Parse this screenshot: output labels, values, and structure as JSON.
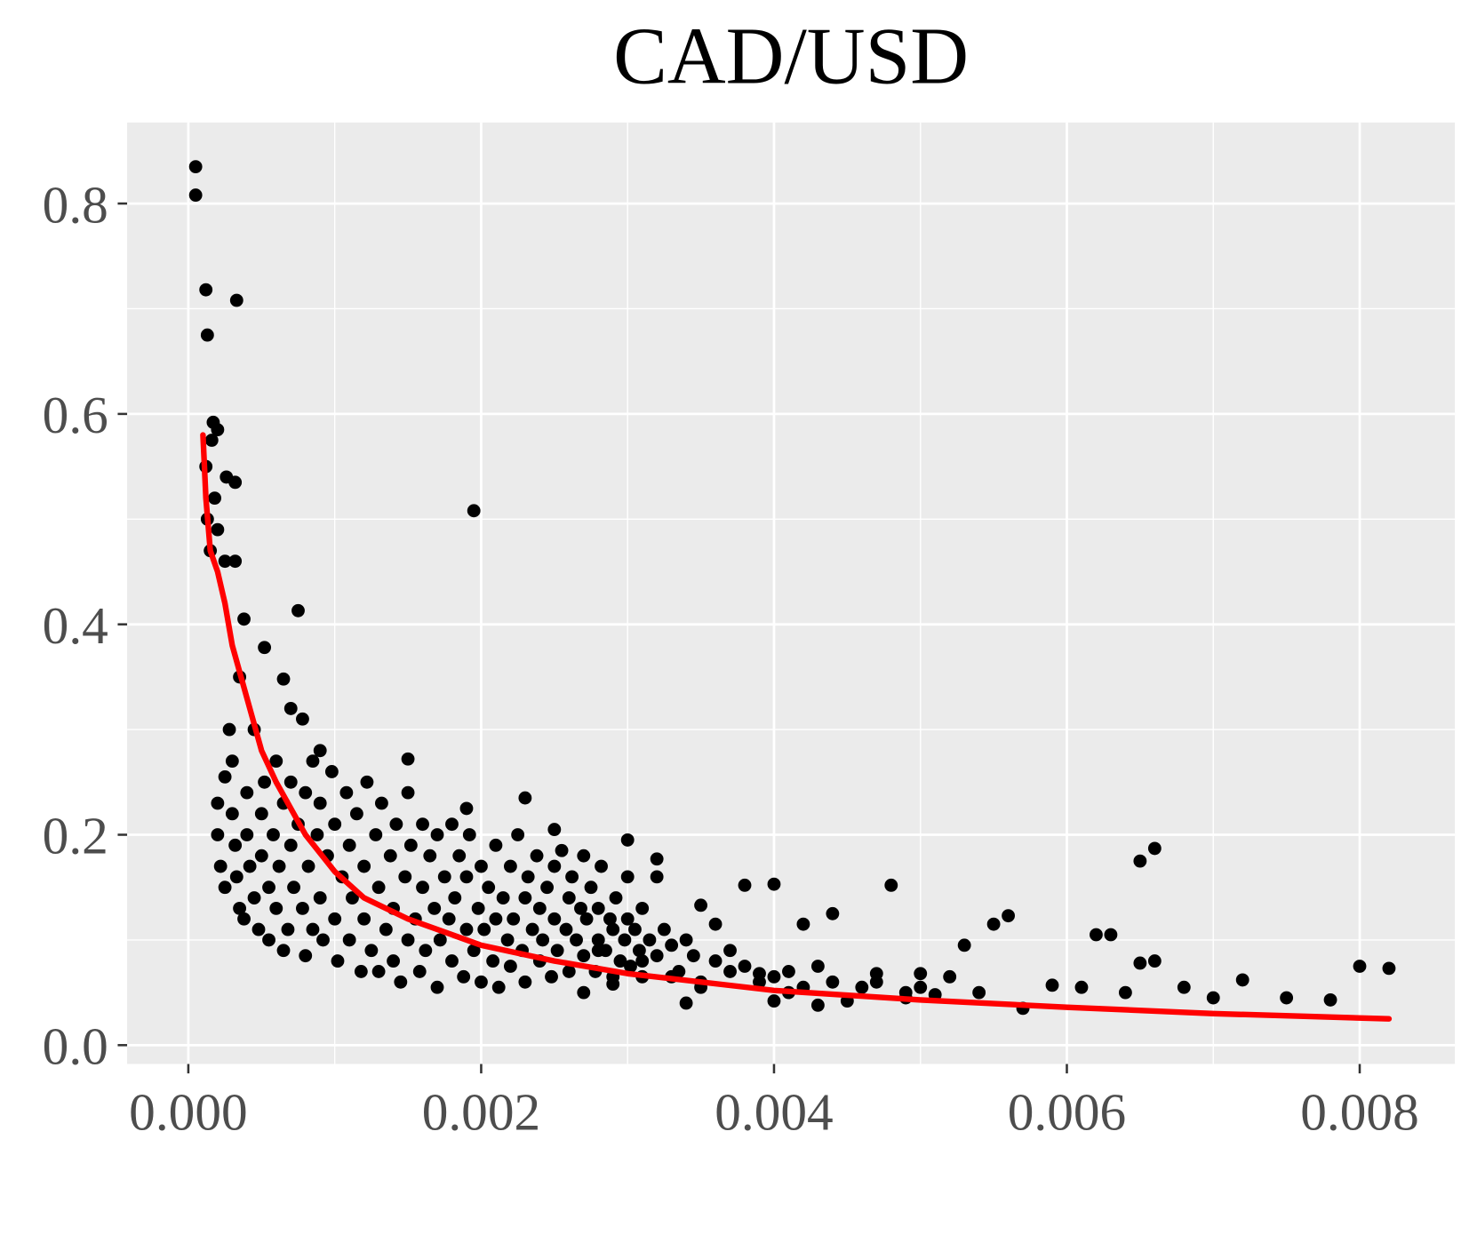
{
  "chart_data": {
    "type": "scatter",
    "title": "CAD/USD",
    "xlim": [
      -0.000418,
      0.00865
    ],
    "ylim": [
      -0.0179,
      0.877
    ],
    "xticks": [
      {
        "value": 0,
        "label": "0.000"
      },
      {
        "value": 0.002,
        "label": "0.002"
      },
      {
        "value": 0.004,
        "label": "0.004"
      },
      {
        "value": 0.006,
        "label": "0.006"
      },
      {
        "value": 0.008,
        "label": "0.008"
      }
    ],
    "yticks": [
      {
        "value": 0,
        "label": "0.0"
      },
      0.2,
      0.4,
      0.6,
      0.8
    ],
    "xminor": [
      0.001,
      0.003,
      0.005,
      0.007
    ],
    "yminor": [
      0.1,
      0.3,
      0.5,
      0.7
    ],
    "grid": true,
    "series": [
      {
        "type": "scatter",
        "color": "#000000",
        "x": [
          5e-05,
          5e-05,
          0.00012,
          0.00033,
          0.00013,
          0.00017,
          0.0002,
          0.00016,
          0.00012,
          0.00026,
          0.00032,
          0.00018,
          0.00195,
          0.00013,
          0.0002,
          0.00015,
          0.00025,
          0.00032,
          0.00075,
          0.00038,
          0.00052,
          0.00065,
          0.0007,
          0.00078,
          0.0009,
          0.0015,
          0.0023,
          0.0019,
          0.0025,
          0.003,
          0.0032,
          0.0035,
          0.0036,
          0.0038,
          0.004,
          0.0042,
          0.0044,
          0.0048,
          0.0055,
          0.0056,
          0.0053,
          0.0065,
          0.0066,
          0.0063,
          0.0062,
          0.0065,
          0.0066,
          0.008,
          0.0082,
          0.0075,
          0.0078,
          0.0072,
          0.007,
          0.0068,
          0.0059,
          0.0061,
          0.0064,
          0.0057,
          0.0054,
          0.0052,
          0.005,
          0.0049,
          0.0047,
          0.0045,
          0.0043,
          0.0041,
          0.004,
          0.0039,
          0.0037,
          0.0035,
          0.0034,
          0.0033,
          0.0031,
          0.0029,
          0.0028,
          0.0027,
          0.0002,
          0.0002,
          0.00022,
          0.00025,
          0.00025,
          0.00028,
          0.0003,
          0.0003,
          0.00032,
          0.00033,
          0.00035,
          0.00035,
          0.00038,
          0.0004,
          0.0004,
          0.00042,
          0.00045,
          0.00045,
          0.00048,
          0.0005,
          0.0005,
          0.00052,
          0.00055,
          0.00055,
          0.00058,
          0.0006,
          0.0006,
          0.00062,
          0.00065,
          0.00065,
          0.00068,
          0.0007,
          0.0007,
          0.00072,
          0.00075,
          0.00078,
          0.0008,
          0.0008,
          0.00082,
          0.00085,
          0.00085,
          0.00088,
          0.0009,
          0.0009,
          0.00092,
          0.00095,
          0.00098,
          0.001,
          0.001,
          0.00102,
          0.00105,
          0.00108,
          0.0011,
          0.0011,
          0.00112,
          0.00115,
          0.00118,
          0.0012,
          0.0012,
          0.00122,
          0.00125,
          0.00128,
          0.0013,
          0.0013,
          0.00132,
          0.00135,
          0.00138,
          0.0014,
          0.0014,
          0.00142,
          0.00145,
          0.00148,
          0.0015,
          0.0015,
          0.00152,
          0.00155,
          0.00158,
          0.0016,
          0.0016,
          0.00162,
          0.00165,
          0.00168,
          0.0017,
          0.0017,
          0.00172,
          0.00175,
          0.00178,
          0.0018,
          0.0018,
          0.00182,
          0.00185,
          0.00188,
          0.0019,
          0.0019,
          0.00192,
          0.00195,
          0.00198,
          0.002,
          0.002,
          0.00202,
          0.00205,
          0.00208,
          0.0021,
          0.0021,
          0.00212,
          0.00215,
          0.00218,
          0.0022,
          0.0022,
          0.00222,
          0.00225,
          0.00228,
          0.0023,
          0.0023,
          0.00232,
          0.00235,
          0.00238,
          0.0024,
          0.0024,
          0.00242,
          0.00245,
          0.00248,
          0.0025,
          0.0025,
          0.00252,
          0.00255,
          0.00258,
          0.0026,
          0.0026,
          0.00262,
          0.00265,
          0.00268,
          0.0027,
          0.0027,
          0.00272,
          0.00275,
          0.00278,
          0.0028,
          0.0028,
          0.00282,
          0.00285,
          0.00288,
          0.0029,
          0.0029,
          0.00292,
          0.00295,
          0.00298,
          0.003,
          0.003,
          0.00302,
          0.00305,
          0.00308,
          0.0031,
          0.0031,
          0.00315,
          0.0032,
          0.0032,
          0.00325,
          0.0033,
          0.00335,
          0.0034,
          0.00345,
          0.0035,
          0.0036,
          0.0037,
          0.0038,
          0.0039,
          0.004,
          0.0041,
          0.0042,
          0.0043,
          0.0044,
          0.0046,
          0.0047,
          0.0049,
          0.005,
          0.0051
        ],
        "values": [
          0.835,
          0.808,
          0.718,
          0.708,
          0.675,
          0.592,
          0.585,
          0.575,
          0.55,
          0.54,
          0.535,
          0.52,
          0.508,
          0.5,
          0.49,
          0.47,
          0.46,
          0.46,
          0.413,
          0.405,
          0.378,
          0.348,
          0.32,
          0.31,
          0.28,
          0.272,
          0.235,
          0.225,
          0.205,
          0.195,
          0.177,
          0.133,
          0.115,
          0.152,
          0.153,
          0.115,
          0.125,
          0.152,
          0.115,
          0.123,
          0.095,
          0.175,
          0.187,
          0.105,
          0.105,
          0.078,
          0.08,
          0.075,
          0.073,
          0.045,
          0.043,
          0.062,
          0.045,
          0.055,
          0.057,
          0.055,
          0.05,
          0.035,
          0.05,
          0.065,
          0.068,
          0.05,
          0.068,
          0.042,
          0.038,
          0.05,
          0.042,
          0.068,
          0.07,
          0.055,
          0.04,
          0.065,
          0.08,
          0.058,
          0.09,
          0.05,
          0.23,
          0.2,
          0.17,
          0.15,
          0.255,
          0.3,
          0.27,
          0.22,
          0.19,
          0.16,
          0.13,
          0.35,
          0.12,
          0.24,
          0.2,
          0.17,
          0.14,
          0.3,
          0.11,
          0.22,
          0.18,
          0.25,
          0.15,
          0.1,
          0.2,
          0.27,
          0.13,
          0.17,
          0.23,
          0.09,
          0.11,
          0.19,
          0.25,
          0.15,
          0.21,
          0.13,
          0.085,
          0.24,
          0.17,
          0.27,
          0.11,
          0.2,
          0.14,
          0.23,
          0.1,
          0.18,
          0.26,
          0.12,
          0.21,
          0.08,
          0.16,
          0.24,
          0.1,
          0.19,
          0.14,
          0.22,
          0.07,
          0.17,
          0.12,
          0.25,
          0.09,
          0.2,
          0.15,
          0.07,
          0.23,
          0.11,
          0.18,
          0.08,
          0.13,
          0.21,
          0.06,
          0.16,
          0.1,
          0.24,
          0.19,
          0.12,
          0.07,
          0.15,
          0.21,
          0.09,
          0.18,
          0.13,
          0.055,
          0.2,
          0.1,
          0.16,
          0.12,
          0.21,
          0.08,
          0.14,
          0.18,
          0.065,
          0.11,
          0.16,
          0.2,
          0.09,
          0.13,
          0.06,
          0.17,
          0.11,
          0.15,
          0.08,
          0.19,
          0.12,
          0.055,
          0.14,
          0.1,
          0.17,
          0.075,
          0.12,
          0.2,
          0.09,
          0.14,
          0.06,
          0.16,
          0.11,
          0.18,
          0.08,
          0.13,
          0.1,
          0.15,
          0.065,
          0.12,
          0.17,
          0.09,
          0.185,
          0.11,
          0.14,
          0.07,
          0.16,
          0.1,
          0.13,
          0.085,
          0.18,
          0.12,
          0.15,
          0.07,
          0.1,
          0.13,
          0.17,
          0.09,
          0.12,
          0.065,
          0.11,
          0.14,
          0.08,
          0.1,
          0.12,
          0.16,
          0.075,
          0.11,
          0.09,
          0.13,
          0.065,
          0.1,
          0.085,
          0.16,
          0.11,
          0.095,
          0.07,
          0.1,
          0.085,
          0.06,
          0.08,
          0.09,
          0.075,
          0.06,
          0.065,
          0.07,
          0.055,
          0.075,
          0.06,
          0.055,
          0.06,
          0.045,
          0.055,
          0.048
        ]
      },
      {
        "type": "line",
        "color": "#ff0000",
        "x": [
          0.0001,
          0.00012,
          0.00015,
          0.0002,
          0.00025,
          0.0003,
          0.0004,
          0.0005,
          0.0006,
          0.0008,
          0.001,
          0.0012,
          0.0015,
          0.002,
          0.0025,
          0.003,
          0.004,
          0.005,
          0.006,
          0.007,
          0.0082
        ],
        "values": [
          0.58,
          0.52,
          0.47,
          0.45,
          0.42,
          0.38,
          0.33,
          0.28,
          0.25,
          0.2,
          0.165,
          0.14,
          0.12,
          0.095,
          0.08,
          0.068,
          0.052,
          0.043,
          0.036,
          0.03,
          0.025
        ]
      }
    ]
  }
}
